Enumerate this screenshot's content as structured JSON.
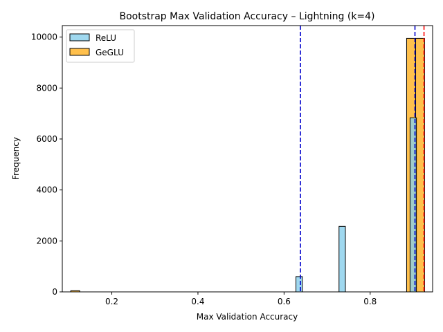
{
  "chart_data": {
    "type": "bar",
    "title": "Bootstrap Max Validation Accuracy – Lightning (k=4)",
    "xlabel": "Max Validation Accuracy",
    "ylabel": "Frequency",
    "xlim": [
      0.085,
      0.945
    ],
    "ylim": [
      0,
      10450
    ],
    "xticks": [
      "0.2",
      "0.4",
      "0.6",
      "0.8"
    ],
    "yticks": [
      "0",
      "2000",
      "4000",
      "6000",
      "8000",
      "10000"
    ],
    "legend_position": "top-left",
    "series": [
      {
        "name": "ReLU",
        "color": "#87CEEB",
        "bin_width": 0.0148,
        "bins": [
          {
            "x": 0.635,
            "value": 600
          },
          {
            "x": 0.735,
            "value": 2570
          },
          {
            "x": 0.9,
            "value": 6830
          }
        ]
      },
      {
        "name": "GeGLU",
        "color": "#FFA500",
        "bin_width": 0.0207,
        "bins": [
          {
            "x": 0.115,
            "value": 48
          },
          {
            "x": 0.895,
            "value": 9950
          },
          {
            "x": 0.916,
            "value": 9950
          }
        ]
      }
    ],
    "reference_lines": [
      {
        "x": 0.638,
        "color": "#0000CC",
        "style": "dashed"
      },
      {
        "x": 0.904,
        "color": "#0000CC",
        "style": "dashed"
      },
      {
        "x": 0.925,
        "color": "#FF0000",
        "style": "dashed"
      }
    ]
  }
}
